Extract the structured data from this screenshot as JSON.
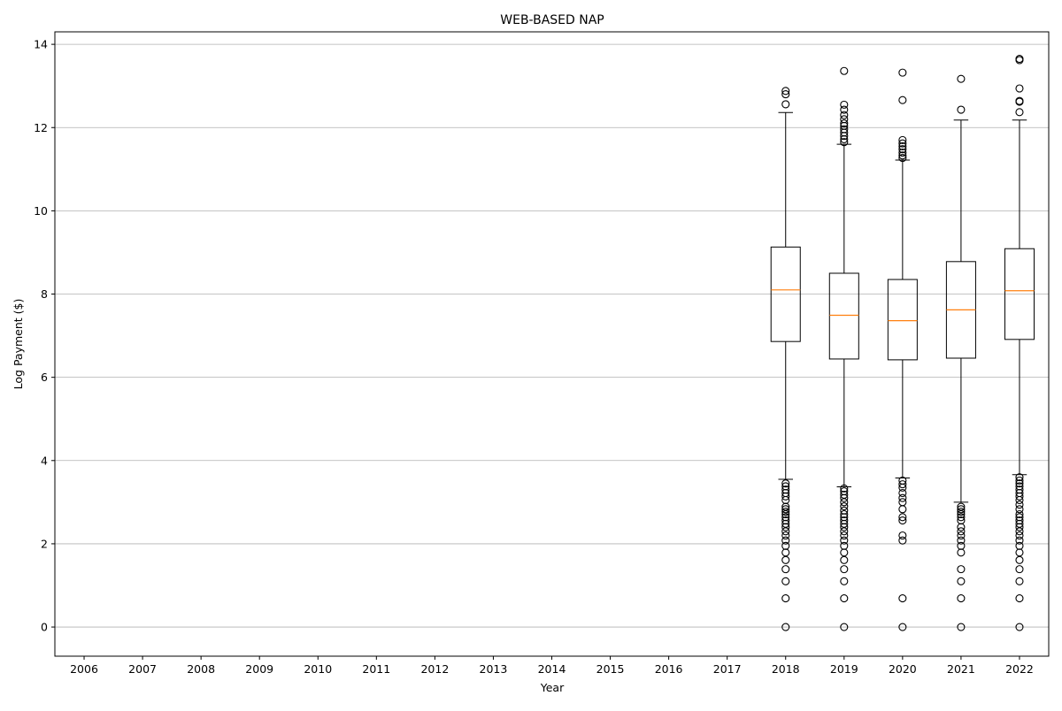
{
  "chart_data": {
    "type": "boxplot",
    "title": "WEB-BASED NAP",
    "xlabel": "Year",
    "ylabel": "Log Payment ($)",
    "categories": [
      "2006",
      "2007",
      "2008",
      "2009",
      "2010",
      "2011",
      "2012",
      "2013",
      "2014",
      "2015",
      "2016",
      "2017",
      "2018",
      "2019",
      "2020",
      "2021",
      "2022"
    ],
    "ylim": [
      -0.7,
      14.3
    ],
    "yticks": [
      0,
      2,
      4,
      6,
      8,
      10,
      12,
      14
    ],
    "grid": "y",
    "colors": {
      "box": "#000000",
      "median": "#ff7f0e",
      "grid": "#b0b0b0"
    },
    "boxes": [
      {
        "category": "2018",
        "whisker_low": 3.55,
        "q1": 6.86,
        "median": 8.1,
        "q3": 9.13,
        "whisker_high": 12.36,
        "outliers": [
          12.88,
          12.8,
          12.56,
          3.45,
          3.38,
          3.3,
          3.22,
          3.14,
          3.05,
          2.89,
          2.83,
          2.77,
          2.71,
          2.64,
          2.56,
          2.48,
          2.4,
          2.3,
          2.2,
          2.08,
          1.95,
          1.79,
          1.61,
          1.39,
          1.1,
          0.69,
          0.0
        ]
      },
      {
        "category": "2019",
        "whisker_low": 3.37,
        "q1": 6.44,
        "median": 7.49,
        "q3": 8.5,
        "whisker_high": 11.6,
        "outliers": [
          13.36,
          12.55,
          12.43,
          12.3,
          12.2,
          12.1,
          12.04,
          11.96,
          11.88,
          11.8,
          11.72,
          11.65,
          3.33,
          3.26,
          3.18,
          3.1,
          3.0,
          2.9,
          2.8,
          2.71,
          2.64,
          2.56,
          2.48,
          2.4,
          2.3,
          2.2,
          2.08,
          1.95,
          1.79,
          1.61,
          1.39,
          1.1,
          0.69,
          0.0
        ]
      },
      {
        "category": "2020",
        "whisker_low": 3.58,
        "q1": 6.42,
        "median": 7.36,
        "q3": 8.35,
        "whisker_high": 11.22,
        "outliers": [
          13.32,
          12.66,
          11.7,
          11.62,
          11.55,
          11.48,
          11.4,
          11.33,
          11.27,
          3.52,
          3.43,
          3.35,
          3.22,
          3.1,
          3.0,
          2.83,
          2.64,
          2.56,
          2.2,
          2.08,
          0.69,
          0.0
        ]
      },
      {
        "category": "2021",
        "whisker_low": 3.0,
        "q1": 6.46,
        "median": 7.62,
        "q3": 8.78,
        "whisker_high": 12.18,
        "outliers": [
          13.17,
          12.43,
          2.89,
          2.83,
          2.77,
          2.71,
          2.64,
          2.56,
          2.4,
          2.3,
          2.2,
          2.08,
          1.95,
          1.79,
          1.39,
          1.1,
          0.69,
          0.0
        ]
      },
      {
        "category": "2022",
        "whisker_low": 3.66,
        "q1": 6.91,
        "median": 8.08,
        "q3": 9.09,
        "whisker_high": 12.18,
        "outliers": [
          13.65,
          13.62,
          12.94,
          12.64,
          12.62,
          12.37,
          3.6,
          3.52,
          3.45,
          3.38,
          3.3,
          3.22,
          3.14,
          3.05,
          2.94,
          2.83,
          2.71,
          2.64,
          2.56,
          2.48,
          2.4,
          2.3,
          2.2,
          2.08,
          1.95,
          1.79,
          1.61,
          1.39,
          1.1,
          0.69,
          0.0
        ]
      }
    ]
  }
}
